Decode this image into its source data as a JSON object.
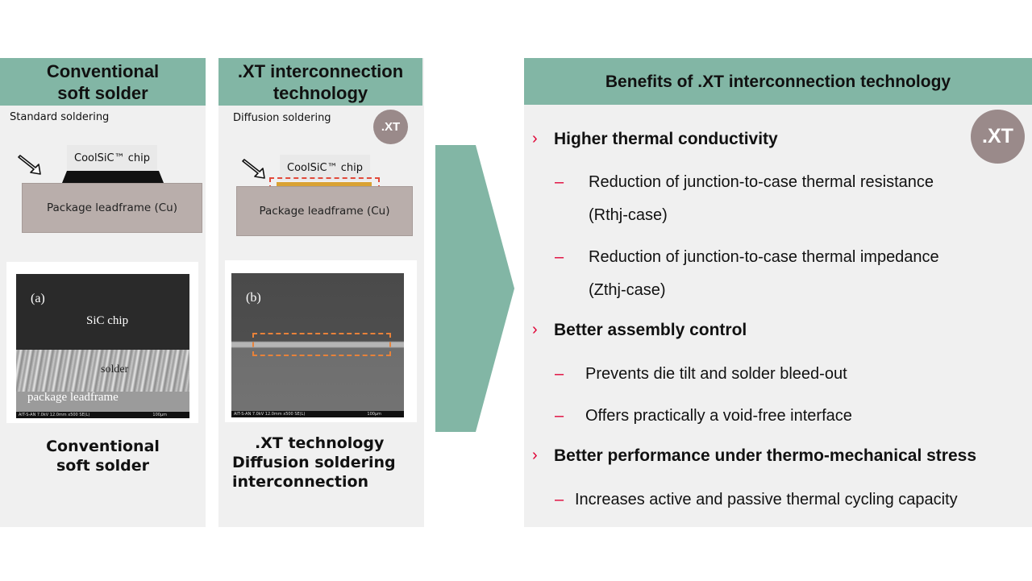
{
  "left": {
    "header": "Conventional\nsoft solder",
    "process_label": "Standard soldering",
    "chip_label": "CoolSiC™ chip",
    "leadframe_label": "Package leadframe (Cu)",
    "sem": {
      "panel_letter": "(a)",
      "chip_label": "SiC chip",
      "solder_label": "solder",
      "leadframe_label": "package leadframe",
      "scale_text": "AIT-S-AN 7.0kV 12.0mm x500 SE(L)",
      "scale_bar": "100μm"
    },
    "caption_line1": "Conventional",
    "caption_line2": "soft solder"
  },
  "middle": {
    "header": ".XT interconnection\ntechnology",
    "process_label": "Diffusion soldering",
    "badge": ".XT",
    "chip_label": "CoolSiC™ chip",
    "leadframe_label": "Package leadframe (Cu)",
    "sem": {
      "panel_letter": "(b)",
      "scale_text": "AIT-S-AN 7.0kV 12.0mm x500 SE(L)",
      "scale_bar": "100μm"
    },
    "caption_line1": ".XT technology",
    "caption_line2": "Diffusion soldering",
    "caption_line3": "interconnection"
  },
  "right": {
    "header": "Benefits of .XT interconnection technology",
    "badge": ".XT",
    "bullet_marker": "›",
    "dash_marker": "–",
    "bullets": [
      {
        "title": "Higher thermal conductivity",
        "subs": [
          [
            "Reduction of junction-to-case thermal resistance",
            "(Rthj-case)"
          ],
          [
            "Reduction of junction-to-case thermal impedance",
            "(Zthj-case)"
          ]
        ]
      },
      {
        "title": "Better assembly control",
        "subs": [
          [
            "Prevents die tilt and solder bleed-out"
          ],
          [
            "Offers practically a void-free interface"
          ]
        ]
      },
      {
        "title": "Better performance under thermo-mechanical stress",
        "subs": [
          [
            "Increases active and passive thermal cycling capacity"
          ]
        ]
      }
    ]
  },
  "colors": {
    "header_bg": "#82b6a5",
    "arrow": "#82b6a5",
    "accent_red": "#e00034",
    "highlight_dash": "#e8823a",
    "badge_bg": "#9a8a8a"
  }
}
